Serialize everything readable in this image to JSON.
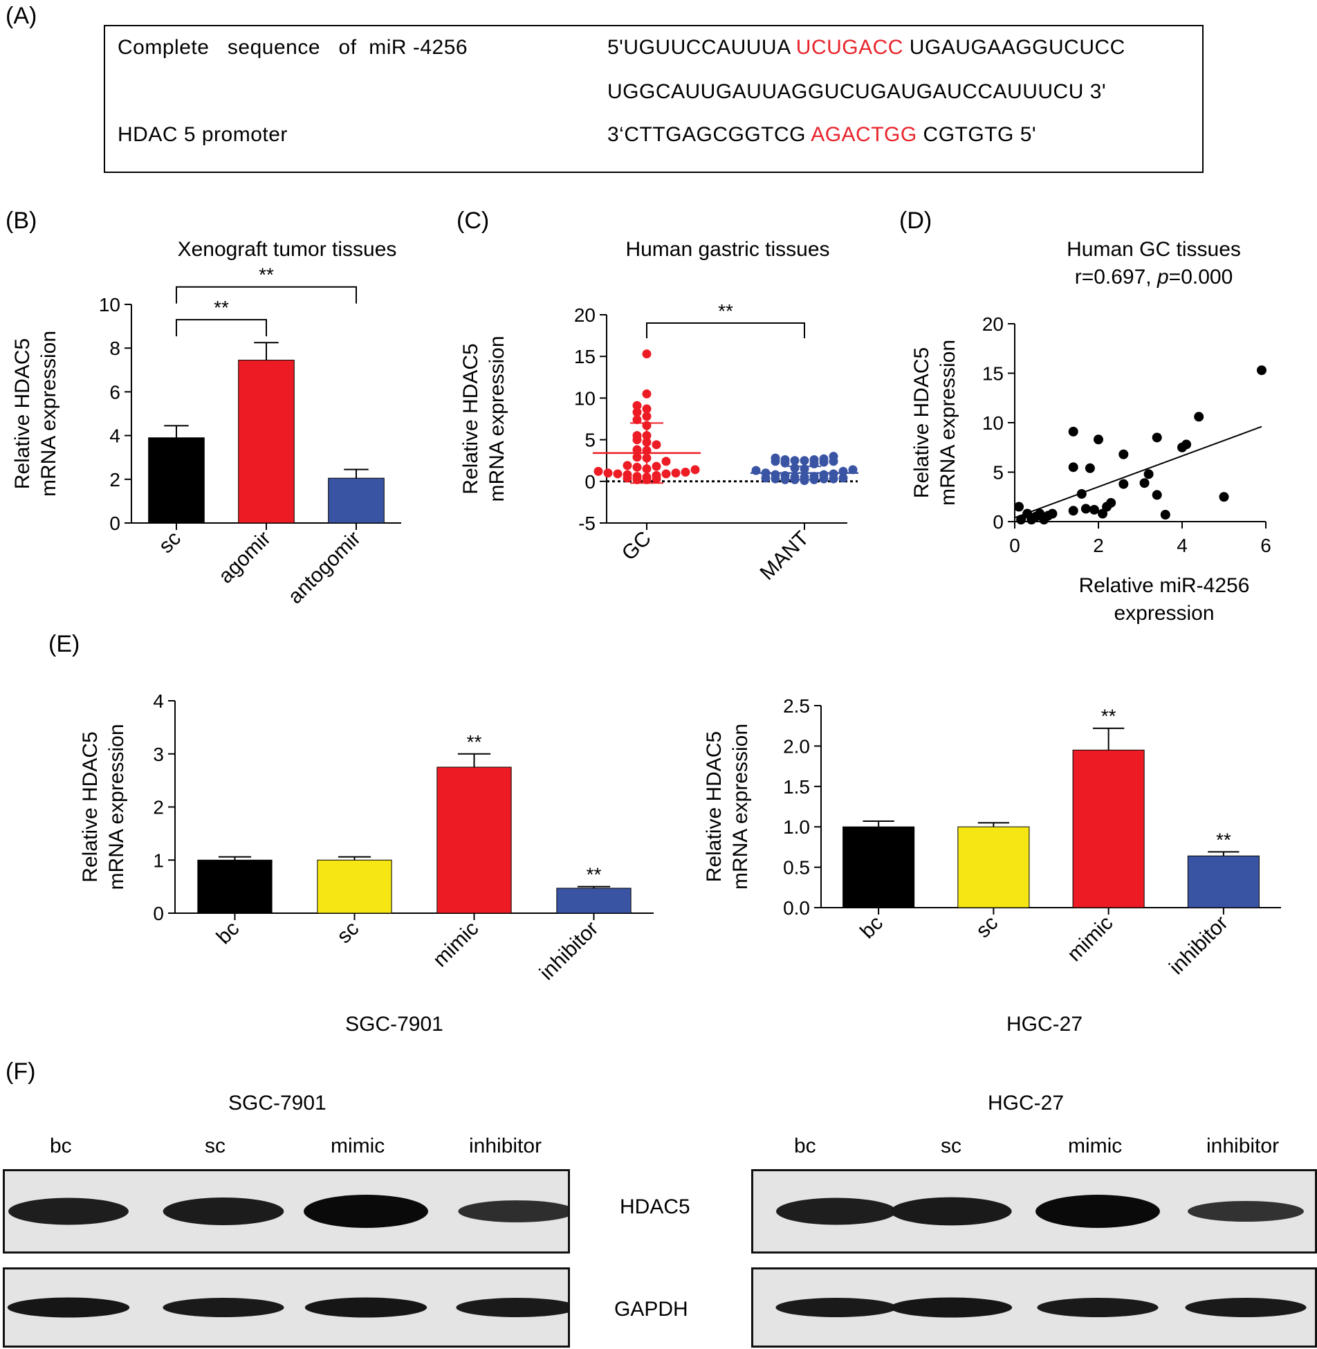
{
  "panels": {
    "a": {
      "label": "(A)"
    },
    "b": {
      "label": "(B)"
    },
    "c": {
      "label": "(C)"
    },
    "d": {
      "label": "(D)"
    },
    "e": {
      "label": "(E)"
    },
    "f": {
      "label": "(F)"
    }
  },
  "sequence": {
    "row1_label": "Complete   sequence   of  miR -4256",
    "row1_seq_pre": "5'UGUUCCAUUUA ",
    "row1_seq_red": "UCUGACC",
    "row1_seq_post": " UGAUGAAGGUCUCC",
    "row2_seq": "UGGCAUUGAUUAGGUCUGAUGAUCCAUUUCU 3'",
    "row3_label": "HDAC 5 promoter",
    "row3_seq_pre": "3‘CTTGAGCGGTCG ",
    "row3_seq_red": "AGACTGG",
    "row3_seq_post": " CGTGTG 5'",
    "highlight_color": "#e8222a"
  },
  "chart_data": [
    {
      "id": "B",
      "type": "bar",
      "title": "Xenograft tumor tissues",
      "ylabel": [
        "Relative HDAC5",
        "mRNA expression"
      ],
      "ylim": [
        0,
        10
      ],
      "yticks": [
        0,
        2,
        4,
        6,
        8,
        10
      ],
      "categories": [
        "sc",
        "agomir",
        "antogomir"
      ],
      "values": [
        3.9,
        7.45,
        2.05
      ],
      "errors": [
        0.55,
        0.8,
        0.4
      ],
      "colors": [
        "#000000",
        "#ed1c24",
        "#3a54a4"
      ],
      "brackets": [
        {
          "from": 0,
          "to": 1,
          "label": "**",
          "y": 9.3
        },
        {
          "from": 0,
          "to": 2,
          "label": "**",
          "y": 10.8
        }
      ]
    },
    {
      "id": "C",
      "type": "scatter",
      "title": "Human gastric tissues",
      "ylabel": [
        "Relative HDAC5",
        "mRNA expression"
      ],
      "ylim": [
        -5,
        20
      ],
      "yticks": [
        -5,
        0,
        5,
        10,
        15,
        20
      ],
      "categories": [
        "GC",
        "MANT"
      ],
      "series": [
        {
          "category": "GC",
          "color": "#ed1c24",
          "mean": 3.4,
          "sd_low": -0.2,
          "sd_high": 7.0,
          "values": [
            15.3,
            10.5,
            9.1,
            8.7,
            8.3,
            7.8,
            7.4,
            6.7,
            5.5,
            5.5,
            5.0,
            4.7,
            4.4,
            3.8,
            3.7,
            2.9,
            2.8,
            2.4,
            1.9,
            1.8,
            1.7,
            1.5,
            1.4,
            1.2,
            1.1,
            1.0,
            1.0,
            0.9,
            0.9,
            0.8,
            0.7,
            0.6,
            0.5,
            0.4,
            0.3,
            0.2,
            0.2
          ]
        },
        {
          "category": "MANT",
          "color": "#3a54a4",
          "mean": 1.0,
          "sd_low": 0.2,
          "sd_high": 1.8,
          "values": [
            3.0,
            2.8,
            2.7,
            2.6,
            2.6,
            2.5,
            2.5,
            2.4,
            2.4,
            2.3,
            2.2,
            2.1,
            1.6,
            1.5,
            1.4,
            1.3,
            1.2,
            1.0,
            0.9,
            0.8,
            0.8,
            0.7,
            0.6,
            0.5,
            0.5,
            0.4,
            0.4,
            0.3,
            0.3,
            0.3,
            0.2,
            0.2,
            0.2,
            0.1
          ]
        }
      ],
      "brackets": [
        {
          "from": 0,
          "to": 1,
          "label": "**",
          "y": 19.0
        }
      ]
    },
    {
      "id": "D",
      "type": "scatter",
      "title": "Human GC tissues",
      "subtitle_pre": "r=0.697, ",
      "subtitle_italic": "p",
      "subtitle_post": "=0.000",
      "xlabel": [
        "Relative miR-4256",
        "expression"
      ],
      "ylabel": [
        "Relative HDAC5",
        "mRNA expression"
      ],
      "xlim": [
        0,
        6
      ],
      "ylim": [
        0,
        20
      ],
      "xticks": [
        0,
        2,
        4,
        6
      ],
      "yticks": [
        0,
        5,
        10,
        15,
        20
      ],
      "points": [
        [
          0.1,
          1.5
        ],
        [
          0.15,
          0.2
        ],
        [
          0.3,
          0.8
        ],
        [
          0.4,
          0.2
        ],
        [
          0.5,
          0.5
        ],
        [
          0.6,
          0.8
        ],
        [
          0.7,
          0.2
        ],
        [
          0.8,
          0.6
        ],
        [
          0.9,
          0.8
        ],
        [
          1.4,
          1.1
        ],
        [
          1.4,
          9.1
        ],
        [
          1.4,
          5.5
        ],
        [
          1.6,
          2.8
        ],
        [
          1.7,
          1.3
        ],
        [
          1.8,
          5.4
        ],
        [
          1.9,
          1.2
        ],
        [
          2.0,
          8.3
        ],
        [
          2.1,
          0.8
        ],
        [
          2.2,
          1.5
        ],
        [
          2.3,
          1.9
        ],
        [
          2.6,
          3.8
        ],
        [
          2.6,
          6.8
        ],
        [
          3.1,
          3.9
        ],
        [
          3.2,
          4.8
        ],
        [
          3.4,
          2.7
        ],
        [
          3.4,
          8.5
        ],
        [
          3.6,
          0.7
        ],
        [
          4.0,
          7.5
        ],
        [
          4.1,
          7.8
        ],
        [
          4.4,
          10.6
        ],
        [
          5.0,
          2.5
        ],
        [
          5.9,
          15.3
        ]
      ],
      "fit": {
        "x": [
          0,
          5.9
        ],
        "y": [
          0.4,
          9.6
        ]
      }
    },
    {
      "id": "E1",
      "type": "bar",
      "caption": "SGC-7901",
      "ylabel": [
        "Relative HDAC5",
        "mRNA expression"
      ],
      "ylim": [
        0,
        4
      ],
      "yticks": [
        0,
        1,
        2,
        3,
        4
      ],
      "categories": [
        "bc",
        "sc",
        "mimic",
        "inhibitor"
      ],
      "values": [
        1.0,
        1.0,
        2.75,
        0.47
      ],
      "errors": [
        0.06,
        0.06,
        0.25,
        0.03
      ],
      "colors": [
        "#000000",
        "#f5e614",
        "#ed1c24",
        "#3a54a4"
      ],
      "marks": [
        "",
        "",
        "**",
        "**"
      ]
    },
    {
      "id": "E2",
      "type": "bar",
      "caption": "HGC-27",
      "ylabel": [
        "Relative HDAC5",
        "mRNA expression"
      ],
      "ylim": [
        0,
        2.5
      ],
      "yticks": [
        "0.0",
        "0.5",
        "1.0",
        "1.5",
        "2.0",
        "2.5"
      ],
      "categories": [
        "bc",
        "sc",
        "mimic",
        "inhibitor"
      ],
      "values": [
        1.0,
        1.0,
        1.95,
        0.64
      ],
      "errors": [
        0.07,
        0.05,
        0.27,
        0.05
      ],
      "colors": [
        "#000000",
        "#f5e614",
        "#ed1c24",
        "#3a54a4"
      ],
      "marks": [
        "",
        "",
        "**",
        "**"
      ]
    }
  ],
  "western_blot": {
    "left_title": "SGC-7901",
    "right_title": "HGC-27",
    "lanes": [
      "bc",
      "sc",
      "mimic",
      "inhibitor"
    ],
    "rows": [
      "HDAC5",
      "GAPDH"
    ],
    "left_intensity": {
      "HDAC5": [
        0.75,
        0.78,
        1.0,
        0.55
      ],
      "GAPDH": [
        0.85,
        0.8,
        0.85,
        0.8
      ]
    },
    "right_intensity": {
      "HDAC5": [
        0.75,
        0.8,
        1.0,
        0.5
      ],
      "GAPDH": [
        0.8,
        0.85,
        0.8,
        0.8
      ]
    }
  }
}
